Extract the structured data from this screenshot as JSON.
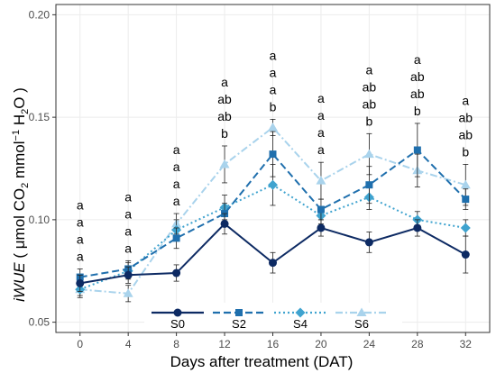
{
  "chart_data": {
    "type": "line",
    "x": [
      0,
      4,
      8,
      12,
      16,
      20,
      24,
      28,
      32
    ],
    "xlabel": "Days after treatment (DAT)",
    "ylabel_parts": {
      "prefix": "iWUE",
      "open": " ( μmol CO",
      "sub1": "2",
      "mid": " mmol",
      "sup": "−1",
      "h": " H",
      "sub2": "2",
      "close": "O )"
    },
    "xlim": [
      -2,
      34
    ],
    "ylim": [
      0.045,
      0.205
    ],
    "yticks": [
      0.05,
      0.1,
      0.15,
      0.2
    ],
    "ytick_labels": [
      "0.05",
      "0.10",
      "0.15",
      "0.20"
    ],
    "xtick_labels": [
      "0",
      "4",
      "8",
      "12",
      "16",
      "20",
      "24",
      "28",
      "32"
    ],
    "grid": true,
    "legend_position": "bottom",
    "series": [
      {
        "name": "S0",
        "color": "#0d2a63",
        "dash": "",
        "marker": "circle",
        "values": [
          0.069,
          0.073,
          0.074,
          0.098,
          0.079,
          0.096,
          0.089,
          0.096,
          0.083
        ],
        "err": [
          0.004,
          0.004,
          0.004,
          0.005,
          0.005,
          0.004,
          0.005,
          0.004,
          0.009
        ]
      },
      {
        "name": "S2",
        "color": "#1f6fad",
        "dash": "8,4",
        "marker": "square",
        "values": [
          0.072,
          0.076,
          0.091,
          0.103,
          0.132,
          0.105,
          0.117,
          0.134,
          0.11
        ],
        "err": [
          0.004,
          0.004,
          0.005,
          0.005,
          0.011,
          0.005,
          0.009,
          0.013,
          0.005
        ]
      },
      {
        "name": "S4",
        "color": "#3fa3cf",
        "dash": "2,3",
        "marker": "diamond",
        "values": [
          0.066,
          0.075,
          0.095,
          0.106,
          0.117,
          0.102,
          0.111,
          0.1,
          0.096
        ],
        "err": [
          0.003,
          0.004,
          0.005,
          0.006,
          0.01,
          0.004,
          0.006,
          0.004,
          0.004
        ]
      },
      {
        "name": "S6",
        "color": "#a9d3ec",
        "dash": "8,3,2,3",
        "marker": "triangle",
        "values": [
          0.066,
          0.064,
          0.098,
          0.127,
          0.145,
          0.119,
          0.132,
          0.124,
          0.117
        ],
        "err": [
          0.004,
          0.004,
          0.005,
          0.009,
          0.004,
          0.009,
          0.01,
          0.008,
          0.01
        ]
      }
    ],
    "significance_letters": [
      [
        "a",
        "a",
        "a",
        "a"
      ],
      [
        "a",
        "a",
        "a",
        "a"
      ],
      [
        "a",
        "a",
        "a",
        "a"
      ],
      [
        "a",
        "ab",
        "ab",
        "b"
      ],
      [
        "a",
        "a",
        "a",
        "b"
      ],
      [
        "a",
        "a",
        "a",
        "a"
      ],
      [
        "a",
        "ab",
        "ab",
        "b"
      ],
      [
        "a",
        "ab",
        "ab",
        "b"
      ],
      [
        "a",
        "ab",
        "ab",
        "b"
      ]
    ]
  }
}
